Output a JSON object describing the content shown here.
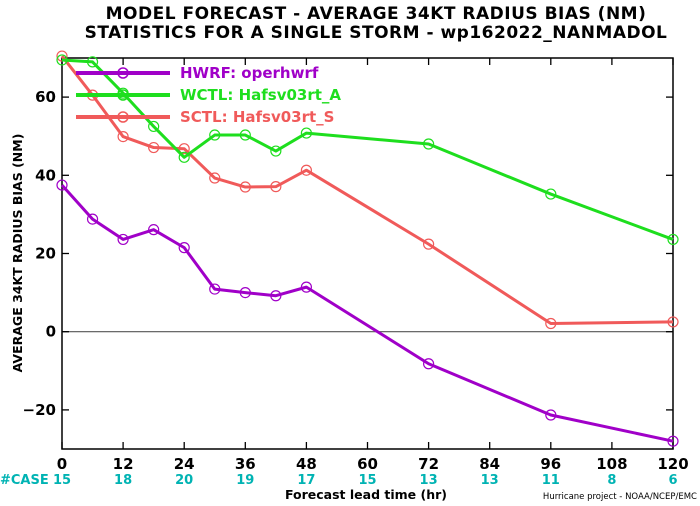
{
  "chart_data": {
    "type": "line",
    "title": "MODEL FORECAST - AVERAGE 34KT RADIUS BIAS (NM)",
    "subtitle": "STATISTICS FOR A SINGLE STORM - wp162022_NANMADOL",
    "xlabel": "Forecast lead time (hr)",
    "ylabel": "AVERAGE 34KT RADIUS BIAS (NM)",
    "xlim": [
      0,
      120
    ],
    "ylim": [
      -30,
      70
    ],
    "xticks": [
      0,
      12,
      24,
      36,
      48,
      60,
      72,
      84,
      96,
      108,
      120
    ],
    "yticks": [
      -20,
      0,
      20,
      40,
      60
    ],
    "zero_line": true,
    "grid": false,
    "legend_position": "top-left",
    "series": [
      {
        "name": "HWRF: operhwrf",
        "color": "#a000c8",
        "x": [
          0,
          6,
          12,
          18,
          24,
          30,
          36,
          42,
          48,
          72,
          96,
          120
        ],
        "y": [
          37.5,
          28.8,
          23.6,
          26.1,
          21.5,
          10.9,
          10.0,
          9.2,
          11.4,
          -8.2,
          -21.3,
          -28.0
        ]
      },
      {
        "name": "WCTL: Hafsv03rt_A",
        "color": "#1ede1e",
        "x": [
          0,
          6,
          12,
          18,
          24,
          30,
          36,
          42,
          48,
          72,
          96,
          120
        ],
        "y": [
          69.5,
          69.0,
          61.0,
          52.5,
          44.6,
          50.3,
          50.3,
          46.2,
          50.8,
          48.0,
          35.2,
          23.6
        ]
      },
      {
        "name": "SCTL: Hafsv03rt_S",
        "color": "#f05a5a",
        "x": [
          0,
          6,
          12,
          18,
          24,
          30,
          36,
          42,
          48,
          72,
          96,
          120
        ],
        "y": [
          70.5,
          60.5,
          49.9,
          47.1,
          46.8,
          39.3,
          37.0,
          37.1,
          41.3,
          22.4,
          2.1,
          2.5
        ]
      }
    ],
    "case_counts": {
      "label": "#CASE",
      "x": [
        0,
        12,
        24,
        36,
        48,
        60,
        72,
        84,
        96,
        108,
        120
      ],
      "values": [
        "15",
        "18",
        "20",
        "19",
        "17",
        "15",
        "13",
        "13",
        "11",
        "8",
        "6"
      ]
    }
  },
  "footer": {
    "credit": "Hurricane project - NOAA/NCEP/EMC"
  }
}
